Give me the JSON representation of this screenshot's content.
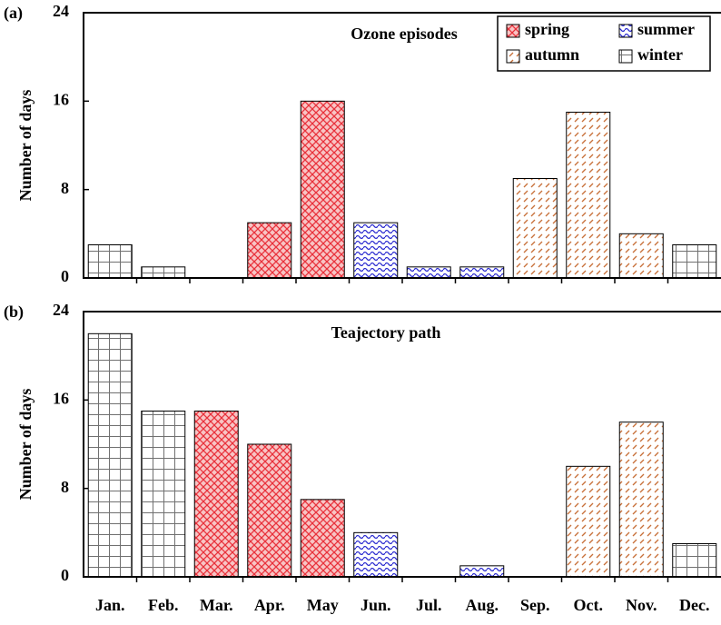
{
  "chart_data": [
    {
      "type": "bar",
      "panel": "(a)",
      "title": "Ozone episodes",
      "ylabel": "Number of days",
      "ylim": [
        0,
        24
      ],
      "yticks": [
        0,
        8,
        16,
        24
      ],
      "legend": "upper right",
      "series": [
        {
          "name": "spring",
          "color": "#e8303a",
          "hatch": "crosshatch",
          "values": [
            null,
            null,
            0,
            5,
            16,
            null,
            null,
            null,
            null,
            null,
            null,
            null
          ]
        },
        {
          "name": "summer",
          "color": "#2a2ad0",
          "hatch": "wave",
          "values": [
            null,
            null,
            null,
            null,
            null,
            5,
            1,
            1,
            null,
            null,
            null,
            null
          ]
        },
        {
          "name": "autumn",
          "color": "#c8703a",
          "hatch": "dash",
          "values": [
            null,
            null,
            null,
            null,
            null,
            null,
            null,
            null,
            9,
            15,
            4,
            null
          ]
        },
        {
          "name": "winter",
          "color": "#707070",
          "hatch": "grid",
          "values": [
            3,
            1,
            null,
            null,
            null,
            null,
            null,
            null,
            null,
            null,
            null,
            3
          ]
        }
      ]
    },
    {
      "type": "bar",
      "panel": "(b)",
      "title": "Teajectory path",
      "ylabel": "Number of days",
      "categories": [
        "Jan.",
        "Feb.",
        "Mar.",
        "Apr.",
        "May",
        "Jun.",
        "Jul.",
        "Aug.",
        "Sep.",
        "Oct.",
        "Nov.",
        "Dec."
      ],
      "ylim": [
        0,
        24
      ],
      "yticks": [
        0,
        8,
        16,
        24
      ],
      "series": [
        {
          "color": "#e8303a",
          "hatch": "crosshatch",
          "values": [
            null,
            null,
            15,
            12,
            7,
            null,
            null,
            null,
            null,
            null,
            null,
            null
          ]
        },
        {
          "color": "#2a2ad0",
          "hatch": "wave",
          "values": [
            null,
            null,
            null,
            null,
            null,
            4,
            0,
            1,
            null,
            null,
            null,
            null
          ]
        },
        {
          "color": "#c8703a",
          "hatch": "dash",
          "values": [
            null,
            null,
            null,
            null,
            null,
            null,
            null,
            null,
            0,
            10,
            14,
            null
          ]
        },
        {
          "color": "#707070",
          "hatch": "grid",
          "values": [
            22,
            15,
            null,
            null,
            null,
            null,
            null,
            null,
            null,
            null,
            null,
            3
          ]
        }
      ]
    }
  ]
}
